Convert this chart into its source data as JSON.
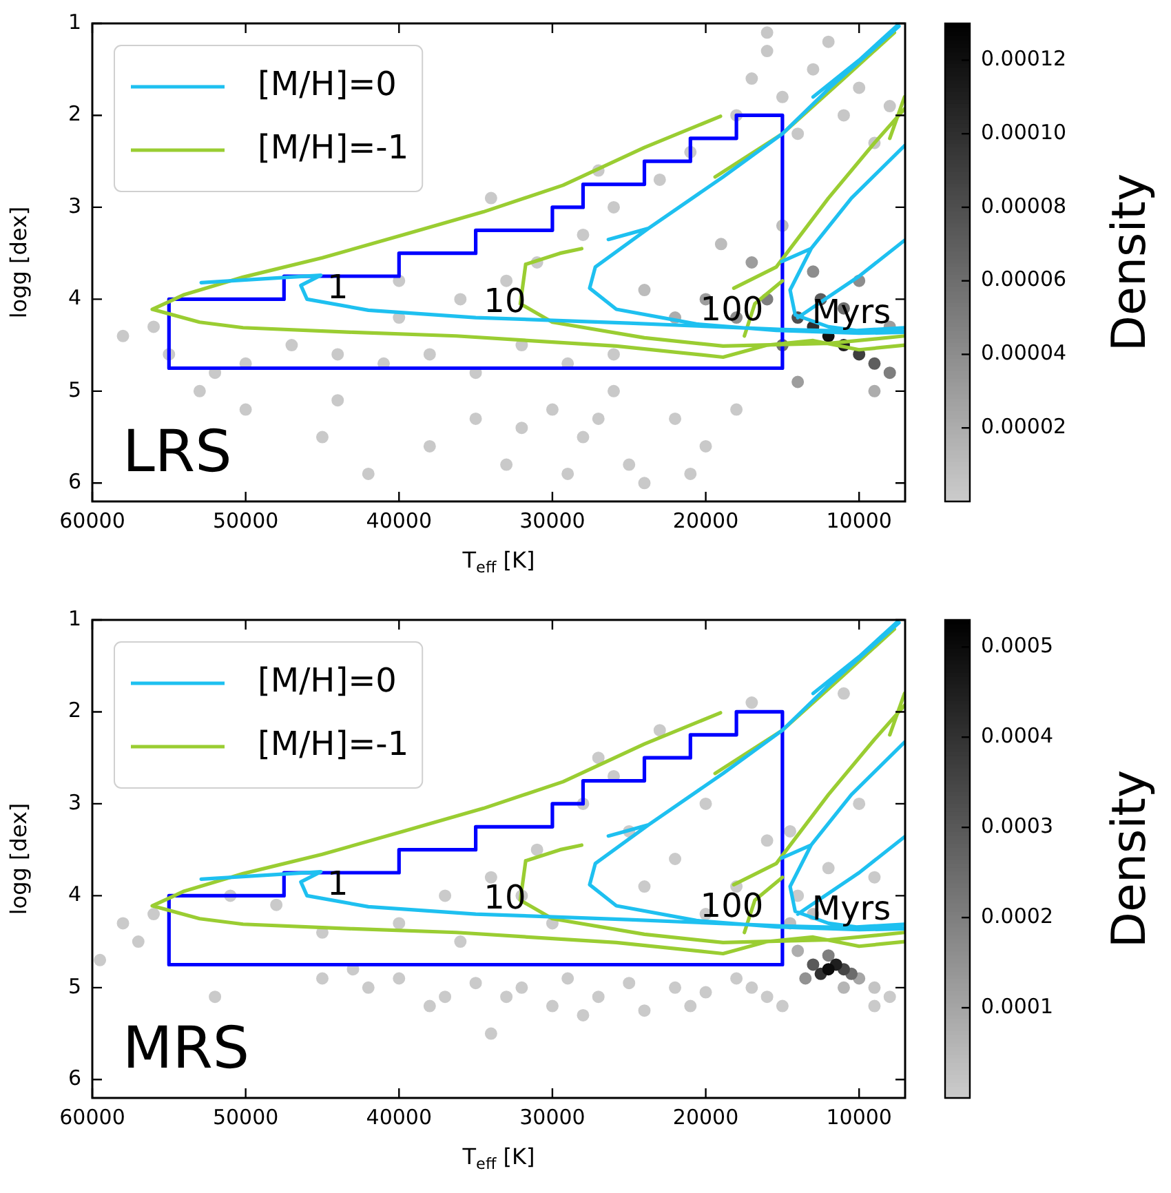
{
  "chart_data": [
    {
      "type": "scatter",
      "xlabel": "T$_{eff}$ [K]",
      "ylabel": "logg [dex]",
      "clabel": "Density",
      "xlim": [
        60000,
        7000
      ],
      "ylim": [
        6.2,
        1
      ],
      "xticks": [
        60000,
        50000,
        40000,
        30000,
        20000,
        10000
      ],
      "yticks": [
        1,
        2,
        3,
        4,
        5,
        6
      ],
      "clim": [
        0,
        0.00013
      ],
      "cticks": [
        {
          "value": 2e-05,
          "label": "0.00002"
        },
        {
          "value": 4e-05,
          "label": "0.00004"
        },
        {
          "value": 6e-05,
          "label": "0.00006"
        },
        {
          "value": 8e-05,
          "label": "0.00008"
        },
        {
          "value": 0.0001,
          "label": "0.00010"
        },
        {
          "value": 0.00012,
          "label": "0.00012"
        }
      ],
      "legend": "top left",
      "annotations": [
        {
          "text": "1",
          "x": 44000,
          "y": 4.06
        },
        {
          "text": "10",
          "x": 33100,
          "y": 4.21
        },
        {
          "text": "100",
          "x": 18300,
          "y": 4.3
        },
        {
          "text": "Myrs",
          "x": 10500,
          "y": 4.33
        },
        "LRS"
      ],
      "series": [
        {
          "type": "scatter",
          "marker": "circle",
          "colors": [
            "#c9c9c9",
            "#c9c9c9",
            "#c9c9c9",
            "#c9c9c9",
            "#c9c9c9",
            "#c9c9c9",
            "#c9c9c9",
            "#c9c9c9",
            "#c9c9c9",
            "#c9c9c9",
            "#c9c9c9",
            "#c9c9c9",
            "#c9c9c9",
            "#c9c9c9",
            "#c9c9c9",
            "#c9c9c9",
            "#c9c9c9",
            "#c9c9c9",
            "#c9c9c9",
            "#c9c9c9",
            "#c9c9c9",
            "#c9c9c9",
            "#c9c9c9",
            "#c9c9c9",
            "#c9c9c9",
            "#c9c9c9",
            "#c9c9c9",
            "#c9c9c9",
            "#c9c9c9",
            "#c9c9c9",
            "#c9c9c9",
            "#c9c9c9",
            "#c9c9c9",
            "#c9c9c9",
            "#c9c9c9",
            "#c9c9c9",
            "#c9c9c9",
            "#c9c9c9",
            "#c9c9c9",
            "#c9c9c9",
            "#c9c9c9",
            "#c9c9c9",
            "#c9c9c9",
            "#c9c9c9",
            "#c7c7c7",
            "#c7c7c7",
            "#c7c7c7",
            "#c7c7c7",
            "#c7c7c7",
            "#c7c7c7",
            "#c7c7c7",
            "#c7c7c7",
            "#c7c7c7",
            "#c7c7c7",
            "#c7c7c7",
            "#c7c7c7",
            "#bcbcbc",
            "#bcbcbc",
            "#bcbcbc",
            "#adadad",
            "#adadad",
            "#9d9d9d",
            "#9d9d9d",
            "#9d9d9d",
            "#9d9d9d",
            "#8d8d8d",
            "#8d8d8d",
            "#8d8d8d",
            "#7e7e7e",
            "#6e6e6e",
            "#5e5e5e",
            "#7e7e7e",
            "#5e5e5e",
            "#6e6e6e",
            "#4e4e4e",
            "#3f3f3f",
            "#2f2f2f",
            "#1f1f1f",
            "#101010"
          ],
          "x": [
            55000,
            52000,
            50000,
            47000,
            44000,
            41000,
            38000,
            35000,
            32000,
            29000,
            26000,
            56000,
            58000,
            53000,
            40000,
            36000,
            31000,
            28000,
            33000,
            26000,
            23000,
            21000,
            27000,
            34000,
            44000,
            40000,
            30000,
            28000,
            25000,
            22000,
            20000,
            26000,
            32000,
            18000,
            24000,
            29000,
            35000,
            21000,
            27000,
            33000,
            38000,
            45000,
            50000,
            42000,
            17000,
            15000,
            13000,
            11000,
            9000,
            14000,
            16000,
            12000,
            10000,
            8000,
            18000,
            16000,
            24000,
            19000,
            15000,
            9000,
            22000,
            14000,
            8000,
            20000,
            17000,
            10000,
            13000,
            18000,
            16000,
            11000,
            12500,
            8000,
            9000,
            15000,
            14000,
            10000,
            13000,
            11000,
            12000
          ],
          "values": [
            4.6,
            4.8,
            4.7,
            4.5,
            4.6,
            4.7,
            4.6,
            4.8,
            4.5,
            4.7,
            4.6,
            4.3,
            4.4,
            5.0,
            4.2,
            4.0,
            3.6,
            3.3,
            3.8,
            3.0,
            2.7,
            2.4,
            2.6,
            2.9,
            5.1,
            3.8,
            5.2,
            5.5,
            5.8,
            5.3,
            5.6,
            5.0,
            5.4,
            5.2,
            6.0,
            5.9,
            5.3,
            5.9,
            5.3,
            5.8,
            5.6,
            5.5,
            5.2,
            5.9,
            1.6,
            1.8,
            1.5,
            2.0,
            2.3,
            2.2,
            1.3,
            1.2,
            1.7,
            1.9,
            2.0,
            1.1,
            3.9,
            3.4,
            3.2,
            5.0,
            4.2,
            4.9,
            4.3,
            4.0,
            3.6,
            3.8,
            3.7,
            4.2,
            4.0,
            4.1,
            4.0,
            4.8,
            4.7,
            4.5,
            4.2,
            4.6,
            4.3,
            4.5,
            4.4
          ],
          "cvalues": [
            2e-06,
            2e-06,
            2e-06,
            2e-06,
            2e-06,
            2e-06,
            2e-06,
            2e-06,
            2e-06,
            2e-06,
            2e-06,
            2e-06,
            2e-06,
            2e-06,
            2e-06,
            2e-06,
            2e-06,
            2e-06,
            2e-06,
            2e-06,
            2e-06,
            2e-06,
            2e-06,
            2e-06,
            2e-06,
            2e-06,
            2e-06,
            2e-06,
            2e-06,
            2e-06,
            2e-06,
            2e-06,
            2e-06,
            2e-06,
            2e-06,
            2e-06,
            2e-06,
            2e-06,
            2e-06,
            2e-06,
            2e-06,
            2e-06,
            2e-06,
            2e-06,
            3e-06,
            3e-06,
            3e-06,
            3e-06,
            3e-06,
            3e-06,
            3e-06,
            3e-06,
            3e-06,
            3e-06,
            3e-06,
            3e-06,
            1e-05,
            1e-05,
            1e-05,
            2e-05,
            2e-05,
            3e-05,
            3e-05,
            3e-05,
            3e-05,
            4e-05,
            4e-05,
            4e-05,
            5e-05,
            6e-05,
            7e-05,
            5e-05,
            7e-05,
            6e-05,
            8e-05,
            9e-05,
            0.0001,
            0.00011,
            0.00012
          ]
        },
        {
          "name": "[M/H]=0",
          "type": "line",
          "color": "#1ec0f0",
          "x": [
            52900,
            48000,
            45100,
            46400,
            46000,
            42000,
            35000,
            25000,
            15000,
            10000,
            7000,
            null,
            26350,
            23740,
            27200,
            27570,
            25830,
            20610,
            15400,
            10000,
            7000,
            null,
            23740,
            18870,
            15000,
            11910,
            7400,
            null,
            15040,
            13130,
            10500,
            7040,
            null,
            13130,
            14500,
            14170,
            12000,
            10170,
            7040,
            null,
            14000,
            10000,
            7040,
            null,
            13000,
            10000,
            7500
          ],
          "values": [
            3.82,
            3.77,
            3.74,
            3.85,
            4.0,
            4.12,
            4.2,
            4.26,
            4.33,
            4.35,
            4.35,
            null,
            3.35,
            3.23,
            3.65,
            3.88,
            4.11,
            4.27,
            4.34,
            4.37,
            4.36,
            null,
            3.23,
            2.67,
            2.2,
            1.7,
            1.03,
            null,
            3.59,
            3.45,
            2.9,
            2.33,
            null,
            3.45,
            3.9,
            4.17,
            4.3,
            4.34,
            4.31,
            null,
            4.2,
            3.75,
            3.36,
            null,
            1.8,
            1.4,
            1.02
          ]
        },
        {
          "name": "[M/H]=-1",
          "type": "line",
          "color": "#9acd32",
          "x": [
            19040,
            24000,
            29300,
            34500,
            39740,
            45000,
            50170,
            54000,
            56090,
            53000,
            50170,
            43000,
            36260,
            25830,
            18870,
            null,
            31740,
            29500,
            28090,
            null,
            31740,
            32090,
            30000,
            24000,
            18870,
            11910,
            7040,
            null,
            19390,
            15000,
            11000,
            7700,
            null,
            18170,
            15400,
            12000,
            9000,
            7040,
            null,
            17480,
            16800,
            15000,
            null,
            8000,
            7040,
            null,
            18870,
            16000,
            13000,
            10000,
            7040
          ],
          "values": [
            2.01,
            2.35,
            2.76,
            3.05,
            3.3,
            3.55,
            3.76,
            3.95,
            4.11,
            4.25,
            4.31,
            4.36,
            4.4,
            4.51,
            4.63,
            null,
            3.62,
            3.5,
            3.45,
            null,
            3.62,
            4.05,
            4.25,
            4.42,
            4.51,
            4.48,
            4.4,
            null,
            2.67,
            2.2,
            1.6,
            1.1,
            null,
            3.88,
            3.65,
            2.9,
            2.3,
            1.93,
            null,
            4.4,
            4.05,
            3.8,
            null,
            2.25,
            1.8,
            null,
            4.63,
            4.5,
            4.45,
            4.55,
            4.5
          ]
        },
        {
          "type": "line",
          "color": "#0000ff",
          "x": [
            55000,
            55000,
            47500,
            47500,
            40000,
            40000,
            35000,
            35000,
            30000,
            30000,
            28000,
            28000,
            24000,
            24000,
            21000,
            21000,
            18000,
            18000,
            15000,
            15000,
            null,
            55000,
            15000
          ],
          "values": [
            4.75,
            4.0,
            4.0,
            3.75,
            3.75,
            3.5,
            3.5,
            3.25,
            3.25,
            3.0,
            3.0,
            2.75,
            2.75,
            2.5,
            2.5,
            2.25,
            2.25,
            2.0,
            2.0,
            4.75,
            null,
            4.75,
            4.75
          ]
        }
      ]
    },
    {
      "type": "scatter",
      "xlabel": "T$_{eff}$ [K]",
      "ylabel": "logg [dex]",
      "clabel": "Density",
      "xlim": [
        60000,
        7000
      ],
      "ylim": [
        6.2,
        1
      ],
      "xticks": [
        60000,
        50000,
        40000,
        30000,
        20000,
        10000
      ],
      "yticks": [
        1,
        2,
        3,
        4,
        5,
        6
      ],
      "clim": [
        0,
        0.00053
      ],
      "cticks": [
        0.0001,
        0.0002,
        0.0003,
        0.0004,
        0.0005
      ],
      "legend": "top left",
      "annotations": [
        {
          "text": "1",
          "x": 44000,
          "y": 4.06
        },
        {
          "text": "10",
          "x": 33100,
          "y": 4.21
        },
        {
          "text": "100",
          "x": 18300,
          "y": 4.3
        },
        {
          "text": "Myrs",
          "x": 10500,
          "y": 4.33
        },
        "MRS"
      ],
      "series": [
        {
          "type": "scatter",
          "marker": "circle",
          "colors": [
            "#cacaca",
            "#cacaca",
            "#cacaca",
            "#cacaca",
            "#cacaca",
            "#cacaca",
            "#cacaca",
            "#cacaca",
            "#cacaca",
            "#cacaca",
            "#cacaca",
            "#cacaca",
            "#cacaca",
            "#cacaca",
            "#cacaca",
            "#cacaca",
            "#cacaca",
            "#cacaca",
            "#cacaca",
            "#cacaca",
            "#cacaca",
            "#cacaca",
            "#cacaca",
            "#cacaca",
            "#cacaca",
            "#cacaca",
            "#cacaca",
            "#cacaca",
            "#cacaca",
            "#cacaca",
            "#cacaca",
            "#cacaca",
            "#cacaca",
            "#cacaca",
            "#cacaca",
            "#cacaca",
            "#cacaca",
            "#cacaca",
            "#cacaca",
            "#cacaca",
            "#cacaca",
            "#cacaca",
            "#cacaca",
            "#cacaca",
            "#cacaca",
            "#cacaca",
            "#cacaca",
            "#cacaca",
            "#cacaca",
            "#cacaca",
            "#cacaca",
            "#cacaca",
            "#cacaca",
            "#cacaca",
            "#cacaca",
            "#cacaca",
            "#cacaca",
            "#cacaca",
            "#c4c4c4",
            "#c0c0c0",
            "#bdbdbd",
            "#b5b5b5",
            "#adadad",
            "#a6a6a6",
            "#929292",
            "#7f7f7f",
            "#6c6c6c",
            "#595959",
            "#454545",
            "#323232",
            "#1f1f1f",
            "#0c0c0c"
          ],
          "x": [
            45000,
            42000,
            40000,
            37000,
            35000,
            32000,
            29000,
            27000,
            25000,
            22000,
            20000,
            18000,
            16000,
            43000,
            38000,
            30000,
            24000,
            33000,
            28000,
            21000,
            17000,
            9000,
            8000,
            15000,
            58000,
            57000,
            59500,
            56000,
            51000,
            48000,
            45000,
            40000,
            37000,
            34000,
            31000,
            28000,
            26000,
            25000,
            22000,
            20000,
            18000,
            16000,
            14000,
            14500,
            12000,
            10000,
            9000,
            27000,
            23000,
            17000,
            30000,
            36000,
            32000,
            11000,
            20000,
            24000,
            34000,
            52000,
            9000,
            13000,
            14500,
            11000,
            14000,
            10000,
            13500,
            12000,
            10500,
            13000,
            11000,
            12500,
            11500,
            12000
          ],
          "values": [
            4.9,
            5.0,
            4.9,
            5.1,
            4.95,
            5.0,
            4.9,
            5.1,
            4.95,
            5.0,
            5.05,
            4.9,
            5.1,
            4.8,
            5.2,
            5.2,
            5.25,
            5.1,
            5.3,
            5.2,
            5.0,
            5.2,
            5.1,
            5.2,
            4.3,
            4.5,
            4.7,
            4.2,
            4.0,
            4.1,
            4.4,
            4.3,
            4.0,
            3.8,
            3.5,
            3.0,
            2.7,
            3.3,
            3.6,
            3.0,
            3.9,
            3.4,
            4.0,
            3.3,
            3.7,
            3.0,
            3.8,
            2.5,
            2.2,
            1.9,
            4.3,
            4.5,
            4.0,
            1.8,
            4.2,
            3.9,
            5.5,
            5.1,
            5.0,
            4.2,
            4.3,
            5.0,
            4.6,
            4.9,
            4.9,
            4.65,
            4.85,
            4.75,
            4.8,
            4.85,
            4.75,
            4.8
          ],
          "cvalues": [
            5e-06,
            5e-06,
            5e-06,
            5e-06,
            5e-06,
            5e-06,
            5e-06,
            5e-06,
            5e-06,
            5e-06,
            5e-06,
            5e-06,
            5e-06,
            5e-06,
            5e-06,
            5e-06,
            5e-06,
            5e-06,
            5e-06,
            5e-06,
            5e-06,
            5e-06,
            5e-06,
            5e-06,
            5e-06,
            5e-06,
            5e-06,
            5e-06,
            5e-06,
            5e-06,
            5e-06,
            5e-06,
            5e-06,
            5e-06,
            5e-06,
            5e-06,
            5e-06,
            5e-06,
            5e-06,
            5e-06,
            5e-06,
            5e-06,
            5e-06,
            5e-06,
            5e-06,
            5e-06,
            5e-06,
            5e-06,
            5e-06,
            5e-06,
            5e-06,
            5e-06,
            5e-06,
            5e-06,
            5e-06,
            5e-06,
            5e-06,
            5e-06,
            2e-05,
            3e-05,
            4e-05,
            6e-05,
            8e-05,
            0.0001,
            0.00015,
            0.0002,
            0.00025,
            0.0003,
            0.00035,
            0.0004,
            0.00045,
            0.0005
          ]
        },
        {
          "name": "[M/H]=0",
          "type": "line",
          "color": "#1ec0f0",
          "x": [
            52900,
            48000,
            45100,
            46400,
            46000,
            42000,
            35000,
            25000,
            15000,
            10000,
            7000,
            null,
            26350,
            23740,
            27200,
            27570,
            25830,
            20610,
            15400,
            10000,
            7000,
            null,
            23740,
            18870,
            15000,
            11910,
            7400,
            null,
            15040,
            13130,
            10500,
            7040,
            null,
            13130,
            14500,
            14170,
            12000,
            10170,
            7040,
            null,
            14000,
            10000,
            7040,
            null,
            13000,
            10000,
            7500
          ],
          "values": [
            3.82,
            3.77,
            3.74,
            3.85,
            4.0,
            4.12,
            4.2,
            4.26,
            4.33,
            4.35,
            4.35,
            null,
            3.35,
            3.23,
            3.65,
            3.88,
            4.11,
            4.27,
            4.34,
            4.37,
            4.36,
            null,
            3.23,
            2.67,
            2.2,
            1.7,
            1.03,
            null,
            3.59,
            3.45,
            2.9,
            2.33,
            null,
            3.45,
            3.9,
            4.17,
            4.3,
            4.34,
            4.31,
            null,
            4.2,
            3.75,
            3.36,
            null,
            1.8,
            1.4,
            1.02
          ]
        },
        {
          "name": "[M/H]=-1",
          "type": "line",
          "color": "#9acd32",
          "x": [
            19040,
            24000,
            29300,
            34500,
            39740,
            45000,
            50170,
            54000,
            56090,
            53000,
            50170,
            43000,
            36260,
            25830,
            18870,
            null,
            31740,
            29500,
            28090,
            null,
            31740,
            32090,
            30000,
            24000,
            18870,
            11910,
            7040,
            null,
            19390,
            15000,
            11000,
            7700,
            null,
            18170,
            15400,
            12000,
            9000,
            7040,
            null,
            17480,
            16800,
            15000,
            null,
            8000,
            7040,
            null,
            18870,
            16000,
            13000,
            10000,
            7040
          ],
          "values": [
            2.01,
            2.35,
            2.76,
            3.05,
            3.3,
            3.55,
            3.76,
            3.95,
            4.11,
            4.25,
            4.31,
            4.36,
            4.4,
            4.51,
            4.63,
            null,
            3.62,
            3.5,
            3.45,
            null,
            3.62,
            4.05,
            4.25,
            4.42,
            4.51,
            4.48,
            4.4,
            null,
            2.67,
            2.2,
            1.6,
            1.1,
            null,
            3.88,
            3.65,
            2.9,
            2.3,
            1.93,
            null,
            4.4,
            4.05,
            3.8,
            null,
            2.25,
            1.8,
            null,
            4.63,
            4.5,
            4.45,
            4.55,
            4.5
          ]
        },
        {
          "type": "line",
          "color": "#0000ff",
          "x": [
            55000,
            55000,
            47500,
            47500,
            40000,
            40000,
            35000,
            35000,
            30000,
            30000,
            28000,
            28000,
            24000,
            24000,
            21000,
            21000,
            18000,
            18000,
            15000,
            15000,
            null,
            55000,
            15000
          ],
          "values": [
            4.75,
            4.0,
            4.0,
            3.75,
            3.75,
            3.5,
            3.5,
            3.25,
            3.25,
            3.0,
            3.0,
            2.75,
            2.75,
            2.5,
            2.5,
            2.25,
            2.25,
            2.0,
            2.0,
            4.75,
            null,
            4.75,
            4.75
          ]
        }
      ]
    }
  ]
}
